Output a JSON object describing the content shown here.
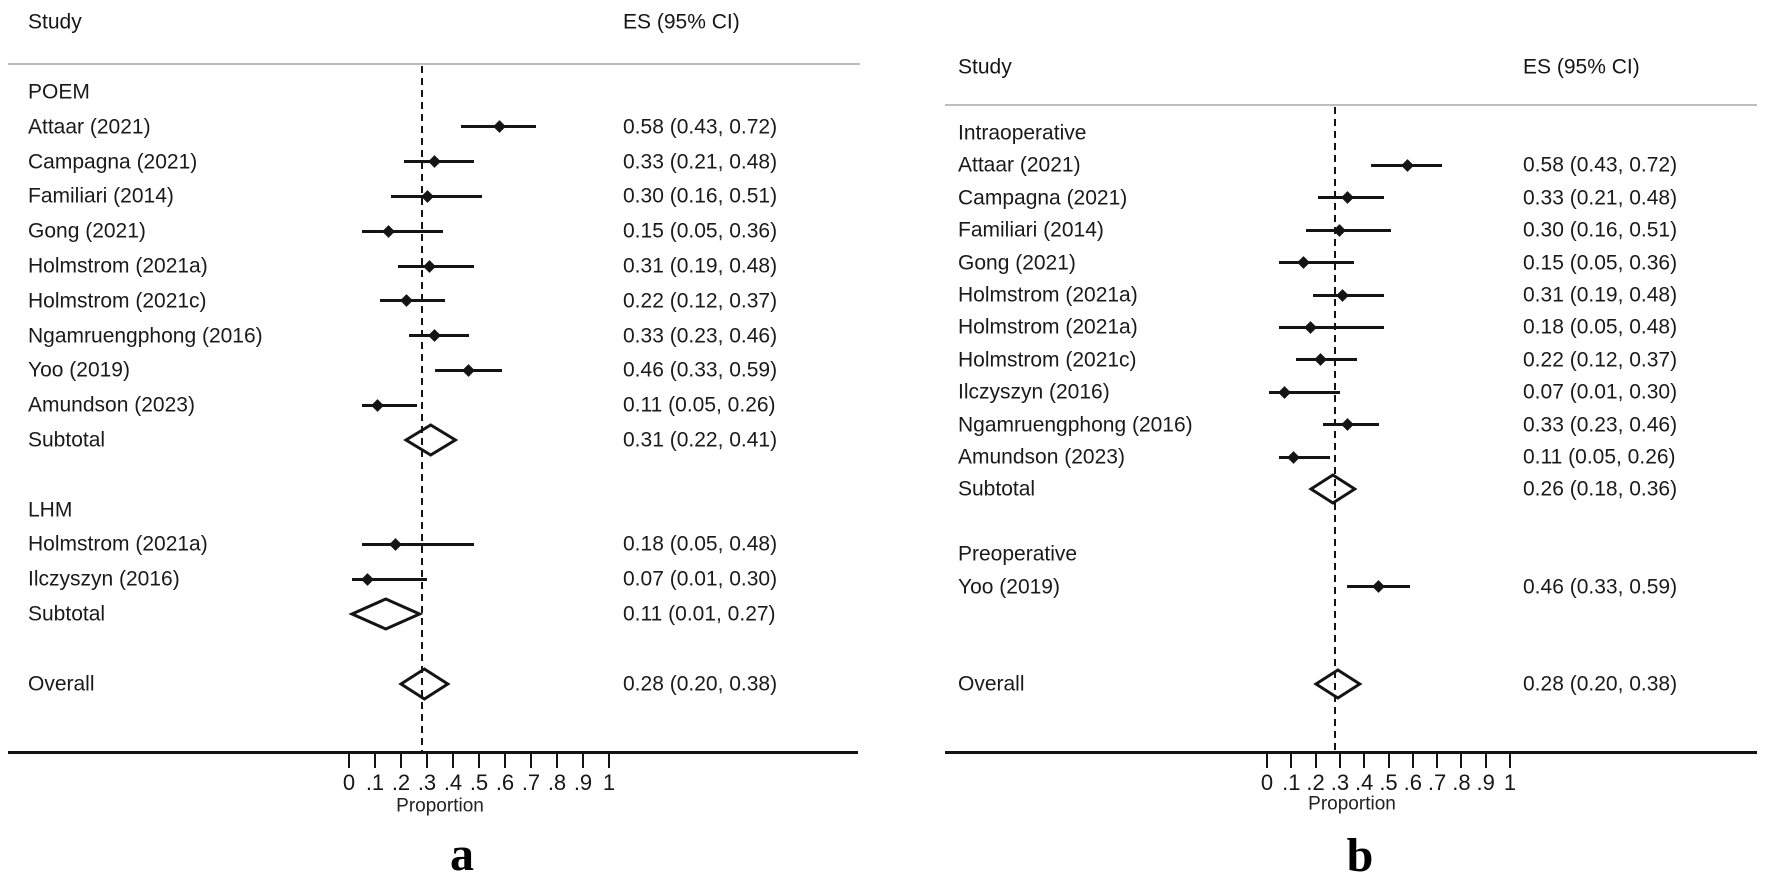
{
  "figure": {
    "type": "forest-plot-meta-analysis",
    "panels": [
      "a",
      "b"
    ]
  },
  "chart_data": [
    {
      "type": "forest",
      "panel_label": "a",
      "study_header": "Study",
      "es_header": "ES (95% CI)",
      "xlabel": "Proportion",
      "x_range": [
        0,
        1
      ],
      "x_ticks": [
        "0",
        ".1",
        ".2",
        ".3",
        ".4",
        ".5",
        ".6",
        ".7",
        ".8",
        ".9",
        "1"
      ],
      "dashed_line_at": 0.28,
      "rows": [
        {
          "type": "group",
          "label": "POEM"
        },
        {
          "type": "study",
          "label": "Attaar (2021)",
          "es": 0.58,
          "ci_low": 0.43,
          "ci_high": 0.72,
          "es_text": "0.58 (0.43, 0.72)"
        },
        {
          "type": "study",
          "label": "Campagna (2021)",
          "es": 0.33,
          "ci_low": 0.21,
          "ci_high": 0.48,
          "es_text": "0.33 (0.21, 0.48)"
        },
        {
          "type": "study",
          "label": "Familiari (2014)",
          "es": 0.3,
          "ci_low": 0.16,
          "ci_high": 0.51,
          "es_text": "0.30 (0.16, 0.51)"
        },
        {
          "type": "study",
          "label": "Gong (2021)",
          "es": 0.15,
          "ci_low": 0.05,
          "ci_high": 0.36,
          "es_text": "0.15 (0.05, 0.36)"
        },
        {
          "type": "study",
          "label": "Holmstrom (2021a)",
          "es": 0.31,
          "ci_low": 0.19,
          "ci_high": 0.48,
          "es_text": "0.31 (0.19, 0.48)"
        },
        {
          "type": "study",
          "label": "Holmstrom (2021c)",
          "es": 0.22,
          "ci_low": 0.12,
          "ci_high": 0.37,
          "es_text": "0.22 (0.12, 0.37)"
        },
        {
          "type": "study",
          "label": "Ngamruengphong (2016)",
          "es": 0.33,
          "ci_low": 0.23,
          "ci_high": 0.46,
          "es_text": "0.33 (0.23, 0.46)"
        },
        {
          "type": "study",
          "label": "Yoo (2019)",
          "es": 0.46,
          "ci_low": 0.33,
          "ci_high": 0.59,
          "es_text": "0.46 (0.33, 0.59)"
        },
        {
          "type": "study",
          "label": "Amundson (2023)",
          "es": 0.11,
          "ci_low": 0.05,
          "ci_high": 0.26,
          "es_text": "0.11 (0.05, 0.26)"
        },
        {
          "type": "subtotal",
          "label": "Subtotal",
          "es": 0.31,
          "ci_low": 0.22,
          "ci_high": 0.41,
          "es_text": "0.31 (0.22, 0.41)"
        },
        {
          "type": "spacer"
        },
        {
          "type": "group",
          "label": "LHM"
        },
        {
          "type": "study",
          "label": "Holmstrom (2021a)",
          "es": 0.18,
          "ci_low": 0.05,
          "ci_high": 0.48,
          "es_text": "0.18 (0.05, 0.48)"
        },
        {
          "type": "study",
          "label": "Ilczyszyn (2016)",
          "es": 0.07,
          "ci_low": 0.01,
          "ci_high": 0.3,
          "es_text": "0.07 (0.01, 0.30)"
        },
        {
          "type": "subtotal",
          "label": "Subtotal",
          "es": 0.11,
          "ci_low": 0.01,
          "ci_high": 0.27,
          "es_text": "0.11 (0.01, 0.27)"
        },
        {
          "type": "spacer"
        },
        {
          "type": "overall",
          "label": "Overall",
          "es": 0.28,
          "ci_low": 0.2,
          "ci_high": 0.38,
          "es_text": "0.28 (0.20, 0.38)"
        }
      ]
    },
    {
      "type": "forest",
      "panel_label": "b",
      "study_header": "Study",
      "es_header": "ES (95% CI)",
      "xlabel": "Proportion",
      "x_range": [
        0,
        1
      ],
      "x_ticks": [
        "0",
        ".1",
        ".2",
        ".3",
        ".4",
        ".5",
        ".6",
        ".7",
        ".8",
        ".9",
        "1"
      ],
      "dashed_line_at": 0.28,
      "rows": [
        {
          "type": "group",
          "label": "Intraoperative"
        },
        {
          "type": "study",
          "label": "Attaar (2021)",
          "es": 0.58,
          "ci_low": 0.43,
          "ci_high": 0.72,
          "es_text": "0.58 (0.43, 0.72)"
        },
        {
          "type": "study",
          "label": "Campagna (2021)",
          "es": 0.33,
          "ci_low": 0.21,
          "ci_high": 0.48,
          "es_text": "0.33 (0.21, 0.48)"
        },
        {
          "type": "study",
          "label": "Familiari (2014)",
          "es": 0.3,
          "ci_low": 0.16,
          "ci_high": 0.51,
          "es_text": "0.30 (0.16, 0.51)"
        },
        {
          "type": "study",
          "label": "Gong (2021)",
          "es": 0.15,
          "ci_low": 0.05,
          "ci_high": 0.36,
          "es_text": "0.15 (0.05, 0.36)"
        },
        {
          "type": "study",
          "label": "Holmstrom (2021a)",
          "es": 0.31,
          "ci_low": 0.19,
          "ci_high": 0.48,
          "es_text": "0.31 (0.19, 0.48)"
        },
        {
          "type": "study",
          "label": "Holmstrom (2021a)",
          "es": 0.18,
          "ci_low": 0.05,
          "ci_high": 0.48,
          "es_text": "0.18 (0.05, 0.48)"
        },
        {
          "type": "study",
          "label": "Holmstrom (2021c)",
          "es": 0.22,
          "ci_low": 0.12,
          "ci_high": 0.37,
          "es_text": "0.22 (0.12, 0.37)"
        },
        {
          "type": "study",
          "label": "Ilczyszyn (2016)",
          "es": 0.07,
          "ci_low": 0.01,
          "ci_high": 0.3,
          "es_text": "0.07 (0.01, 0.30)"
        },
        {
          "type": "study",
          "label": "Ngamruengphong (2016)",
          "es": 0.33,
          "ci_low": 0.23,
          "ci_high": 0.46,
          "es_text": "0.33 (0.23, 0.46)"
        },
        {
          "type": "study",
          "label": "Amundson (2023)",
          "es": 0.11,
          "ci_low": 0.05,
          "ci_high": 0.26,
          "es_text": "0.11 (0.05, 0.26)"
        },
        {
          "type": "subtotal",
          "label": "Subtotal",
          "es": 0.26,
          "ci_low": 0.18,
          "ci_high": 0.36,
          "es_text": "0.26 (0.18, 0.36)"
        },
        {
          "type": "spacer"
        },
        {
          "type": "group",
          "label": "Preoperative"
        },
        {
          "type": "study",
          "label": "Yoo (2019)",
          "es": 0.46,
          "ci_low": 0.33,
          "ci_high": 0.59,
          "es_text": "0.46 (0.33, 0.59)"
        },
        {
          "type": "spacer"
        },
        {
          "type": "spacer"
        },
        {
          "type": "overall",
          "label": "Overall",
          "es": 0.28,
          "ci_low": 0.2,
          "ci_high": 0.38,
          "es_text": "0.28 (0.20, 0.38)"
        }
      ]
    }
  ]
}
